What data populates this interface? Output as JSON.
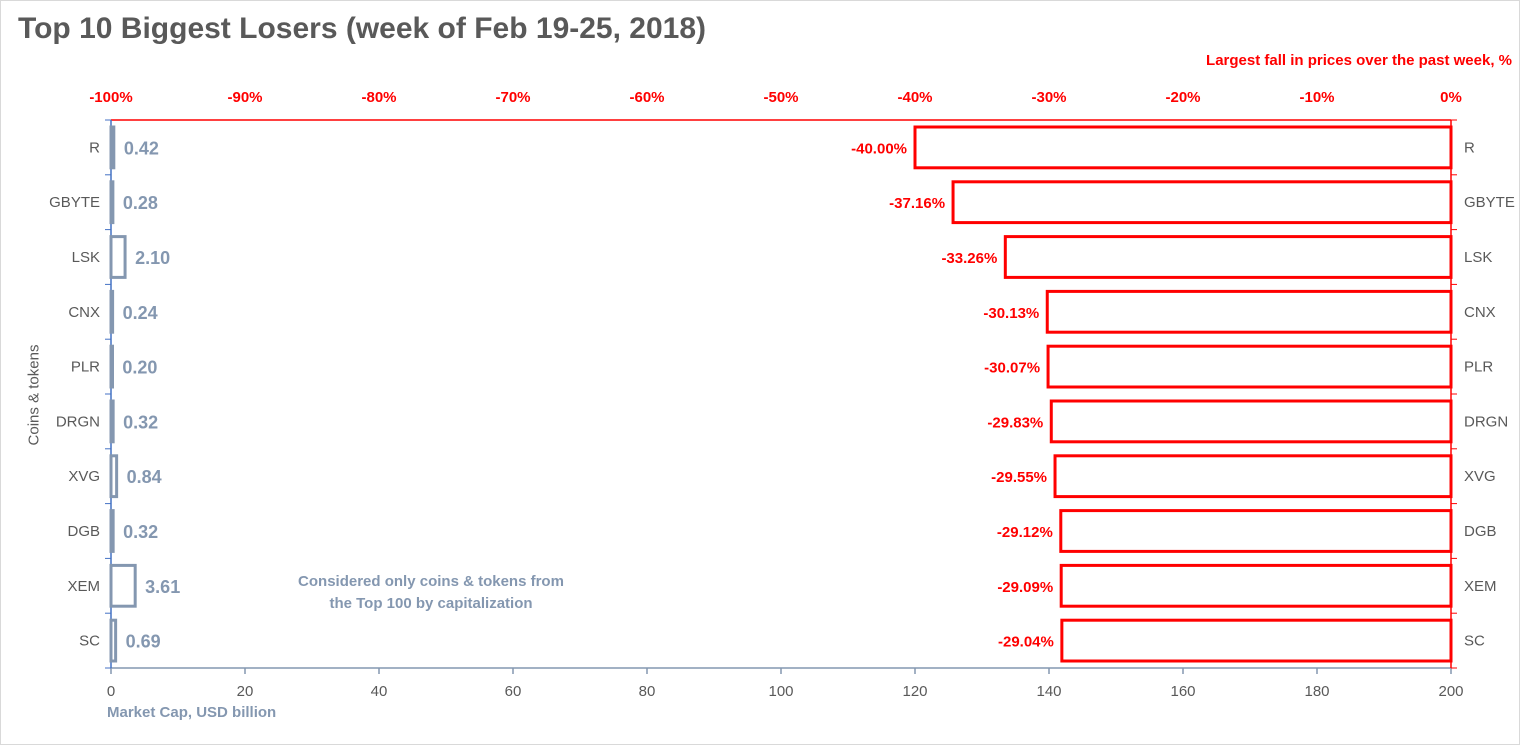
{
  "title": "Top 10 Biggest Losers (week of Feb 19-25, 2018)",
  "note": [
    "Considered only coins & tokens from",
    "the Top 100 by capitalization"
  ],
  "chart_data": {
    "type": "bar",
    "orientation": "horizontal",
    "categories": [
      "R",
      "GBYTE",
      "LSK",
      "CNX",
      "PLR",
      "DRGN",
      "XVG",
      "DGB",
      "XEM",
      "SC"
    ],
    "yaxis_title": "Coins & tokens",
    "series": [
      {
        "name": "Market Cap",
        "axis": "bottom",
        "values": [
          0.42,
          0.28,
          2.1,
          0.24,
          0.2,
          0.32,
          0.84,
          0.32,
          3.61,
          0.69
        ],
        "labels": [
          "0.42",
          "0.28",
          "2.10",
          "0.24",
          "0.20",
          "0.32",
          "0.84",
          "0.32",
          "3.61",
          "0.69"
        ],
        "color": "#8497b0"
      },
      {
        "name": "Largest fall in prices over the past week",
        "axis": "top",
        "values": [
          -40.0,
          -37.16,
          -33.26,
          -30.13,
          -30.07,
          -29.83,
          -29.55,
          -29.12,
          -29.09,
          -29.04
        ],
        "labels": [
          "-40.00%",
          "-37.16%",
          "-33.26%",
          "-30.13%",
          "-30.07%",
          "-29.83%",
          "-29.55%",
          "-29.12%",
          "-29.09%",
          "-29.04%"
        ],
        "color": "#ff0000"
      }
    ],
    "top_axis": {
      "title": "Largest fall in prices over the past week, %",
      "range": [
        -100,
        0
      ],
      "ticks": [
        "-100%",
        "-90%",
        "-80%",
        "-70%",
        "-60%",
        "-50%",
        "-40%",
        "-30%",
        "-20%",
        "-10%",
        "0%"
      ],
      "color": "#ff0000"
    },
    "bottom_axis": {
      "title": "Market Cap,  USD billion",
      "range": [
        0,
        200
      ],
      "ticks": [
        "0",
        "20",
        "40",
        "60",
        "80",
        "100",
        "120",
        "140",
        "160",
        "180",
        "200"
      ],
      "color": "#8497b0"
    },
    "grid": false,
    "legend": "none"
  }
}
